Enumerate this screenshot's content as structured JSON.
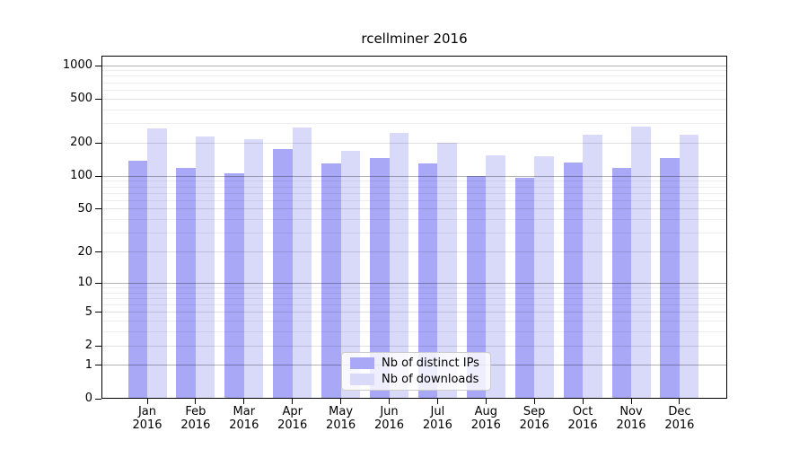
{
  "chart_data": {
    "type": "bar",
    "title": "rcellminer 2016",
    "categories": [
      "Jan",
      "Feb",
      "Mar",
      "Apr",
      "May",
      "Jun",
      "Jul",
      "Aug",
      "Sep",
      "Oct",
      "Nov",
      "Dec"
    ],
    "x_tick_year": "2016",
    "series": [
      {
        "name": "Nb of distinct IPs",
        "color": "#a8a8f7",
        "values": [
          139,
          119,
          106,
          176,
          130,
          145,
          130,
          100,
          97,
          133,
          119,
          145
        ]
      },
      {
        "name": "Nb of downloads",
        "color": "#d9d9fa",
        "values": [
          272,
          228,
          216,
          277,
          171,
          247,
          201,
          155,
          152,
          238,
          281,
          238
        ]
      }
    ],
    "yscale": "log(1+x)",
    "ylim": [
      0,
      1228
    ],
    "y_ticks": [
      0,
      1,
      2,
      5,
      10,
      20,
      50,
      100,
      200,
      500,
      1000
    ],
    "y_major_gridlines": [
      1,
      10,
      100,
      1000
    ],
    "y_minor_gridlines": [
      3,
      4,
      6,
      7,
      8,
      9,
      30,
      40,
      60,
      70,
      80,
      90,
      300,
      400,
      600,
      700,
      800,
      900
    ],
    "grid": true,
    "legend_position": "bottom-center",
    "axis_color": "#000000"
  }
}
